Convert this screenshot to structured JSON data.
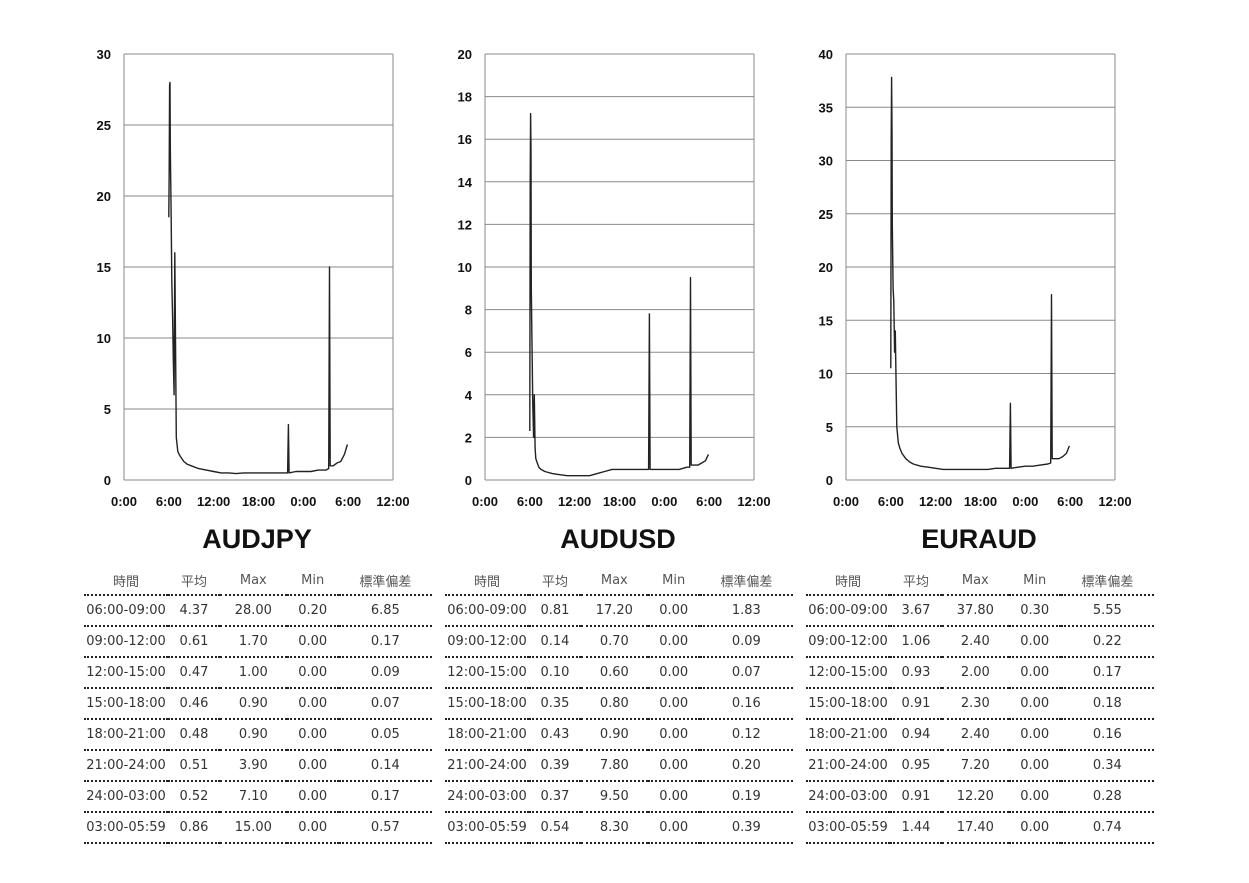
{
  "chart_data": [
    {
      "type": "line",
      "title": "AUDJPY",
      "xticks": [
        "0:00",
        "6:00",
        "12:00",
        "18:00",
        "0:00",
        "6:00",
        "12:00"
      ],
      "ylim": [
        0,
        30
      ],
      "yticks": [
        0,
        5,
        10,
        15,
        20,
        25,
        30
      ],
      "grid": true,
      "series": [
        {
          "x": [
            6.0,
            6.05,
            6.1,
            6.15,
            6.2,
            6.3,
            6.4,
            6.5,
            6.6,
            6.7,
            6.8,
            7.0,
            7.2,
            7.5,
            8.0,
            8.5,
            9.0,
            10,
            11,
            12,
            13,
            14,
            15,
            16,
            17,
            18,
            19,
            20,
            21,
            21.9,
            22.0,
            22.1,
            23,
            24,
            25,
            26,
            27,
            27.4,
            27.5,
            27.6,
            28,
            28.5,
            29,
            29.5,
            29.9
          ],
          "y": [
            18.5,
            22,
            27.8,
            28.0,
            23.5,
            19,
            14,
            11.5,
            8.5,
            6,
            16,
            3,
            2,
            1.7,
            1.3,
            1.1,
            1.0,
            0.8,
            0.7,
            0.6,
            0.5,
            0.5,
            0.45,
            0.5,
            0.5,
            0.5,
            0.5,
            0.5,
            0.5,
            0.5,
            3.9,
            0.5,
            0.6,
            0.6,
            0.6,
            0.7,
            0.7,
            0.8,
            15.0,
            1.0,
            1.0,
            1.2,
            1.3,
            1.8,
            2.5
          ]
        }
      ]
    },
    {
      "type": "line",
      "title": "AUDUSD",
      "xticks": [
        "0:00",
        "6:00",
        "12:00",
        "18:00",
        "0:00",
        "6:00",
        "12:00"
      ],
      "ylim": [
        0,
        20
      ],
      "yticks": [
        0,
        2,
        4,
        6,
        8,
        10,
        12,
        14,
        16,
        18,
        20
      ],
      "grid": true,
      "series": [
        {
          "x": [
            6.0,
            6.05,
            6.1,
            6.15,
            6.2,
            6.3,
            6.4,
            6.5,
            6.6,
            6.7,
            6.8,
            7.0,
            7.2,
            7.5,
            8.0,
            8.5,
            9.0,
            10,
            11,
            12,
            13,
            14,
            15,
            16,
            17,
            18,
            19,
            20,
            21,
            21.9,
            22.0,
            22.1,
            23,
            24,
            25,
            26,
            27,
            27.4,
            27.5,
            27.6,
            28,
            28.5,
            29,
            29.5,
            29.9
          ],
          "y": [
            2.3,
            14,
            17.2,
            15.5,
            9,
            6,
            3.5,
            2,
            4,
            1.5,
            1.0,
            0.8,
            0.6,
            0.5,
            0.4,
            0.35,
            0.3,
            0.25,
            0.2,
            0.2,
            0.2,
            0.2,
            0.3,
            0.4,
            0.5,
            0.5,
            0.5,
            0.5,
            0.5,
            0.5,
            7.8,
            0.5,
            0.5,
            0.5,
            0.5,
            0.5,
            0.6,
            0.6,
            9.5,
            0.7,
            0.7,
            0.7,
            0.8,
            0.9,
            1.2
          ]
        }
      ]
    },
    {
      "type": "line",
      "title": "EURAUD",
      "xticks": [
        "0:00",
        "6:00",
        "12:00",
        "18:00",
        "0:00",
        "6:00",
        "12:00"
      ],
      "ylim": [
        0,
        40
      ],
      "yticks": [
        0,
        5,
        10,
        15,
        20,
        25,
        30,
        35,
        40
      ],
      "grid": true,
      "series": [
        {
          "x": [
            6.0,
            6.05,
            6.1,
            6.15,
            6.2,
            6.3,
            6.4,
            6.5,
            6.6,
            6.7,
            6.8,
            7.0,
            7.2,
            7.5,
            8.0,
            8.5,
            9.0,
            10,
            11,
            12,
            13,
            14,
            15,
            16,
            17,
            18,
            19,
            20,
            21,
            21.9,
            22.0,
            22.1,
            23,
            24,
            25,
            26,
            27,
            27.4,
            27.5,
            27.6,
            28,
            28.5,
            29,
            29.5,
            29.9
          ],
          "y": [
            10.5,
            32,
            37.8,
            33,
            24,
            18,
            16.8,
            12,
            14,
            9,
            5,
            3.5,
            3,
            2.5,
            2.0,
            1.7,
            1.5,
            1.3,
            1.2,
            1.1,
            1.0,
            1.0,
            1.0,
            1.0,
            1.0,
            1.0,
            1.0,
            1.1,
            1.1,
            1.1,
            7.2,
            1.1,
            1.2,
            1.3,
            1.3,
            1.4,
            1.5,
            1.6,
            17.4,
            2.0,
            2.0,
            2.0,
            2.2,
            2.5,
            3.2
          ]
        }
      ]
    }
  ],
  "tables": [
    {
      "headers": [
        "時間",
        "平均",
        "Max",
        "Min",
        "標準偏差"
      ],
      "rows": [
        [
          "06:00-09:00",
          "4.37",
          "28.00",
          "0.20",
          "6.85"
        ],
        [
          "09:00-12:00",
          "0.61",
          "1.70",
          "0.00",
          "0.17"
        ],
        [
          "12:00-15:00",
          "0.47",
          "1.00",
          "0.00",
          "0.09"
        ],
        [
          "15:00-18:00",
          "0.46",
          "0.90",
          "0.00",
          "0.07"
        ],
        [
          "18:00-21:00",
          "0.48",
          "0.90",
          "0.00",
          "0.05"
        ],
        [
          "21:00-24:00",
          "0.51",
          "3.90",
          "0.00",
          "0.14"
        ],
        [
          "24:00-03:00",
          "0.52",
          "7.10",
          "0.00",
          "0.17"
        ],
        [
          "03:00-05:59",
          "0.86",
          "15.00",
          "0.00",
          "0.57"
        ]
      ]
    },
    {
      "headers": [
        "時間",
        "平均",
        "Max",
        "Min",
        "標準偏差"
      ],
      "rows": [
        [
          "06:00-09:00",
          "0.81",
          "17.20",
          "0.00",
          "1.83"
        ],
        [
          "09:00-12:00",
          "0.14",
          "0.70",
          "0.00",
          "0.09"
        ],
        [
          "12:00-15:00",
          "0.10",
          "0.60",
          "0.00",
          "0.07"
        ],
        [
          "15:00-18:00",
          "0.35",
          "0.80",
          "0.00",
          "0.16"
        ],
        [
          "18:00-21:00",
          "0.43",
          "0.90",
          "0.00",
          "0.12"
        ],
        [
          "21:00-24:00",
          "0.39",
          "7.80",
          "0.00",
          "0.20"
        ],
        [
          "24:00-03:00",
          "0.37",
          "9.50",
          "0.00",
          "0.19"
        ],
        [
          "03:00-05:59",
          "0.54",
          "8.30",
          "0.00",
          "0.39"
        ]
      ]
    },
    {
      "headers": [
        "時間",
        "平均",
        "Max",
        "Min",
        "標準偏差"
      ],
      "rows": [
        [
          "06:00-09:00",
          "3.67",
          "37.80",
          "0.30",
          "5.55"
        ],
        [
          "09:00-12:00",
          "1.06",
          "2.40",
          "0.00",
          "0.22"
        ],
        [
          "12:00-15:00",
          "0.93",
          "2.00",
          "0.00",
          "0.17"
        ],
        [
          "15:00-18:00",
          "0.91",
          "2.30",
          "0.00",
          "0.18"
        ],
        [
          "18:00-21:00",
          "0.94",
          "2.40",
          "0.00",
          "0.16"
        ],
        [
          "21:00-24:00",
          "0.95",
          "7.20",
          "0.00",
          "0.34"
        ],
        [
          "24:00-03:00",
          "0.91",
          "12.20",
          "0.00",
          "0.28"
        ],
        [
          "03:00-05:59",
          "1.44",
          "17.40",
          "0.00",
          "0.74"
        ]
      ]
    }
  ]
}
